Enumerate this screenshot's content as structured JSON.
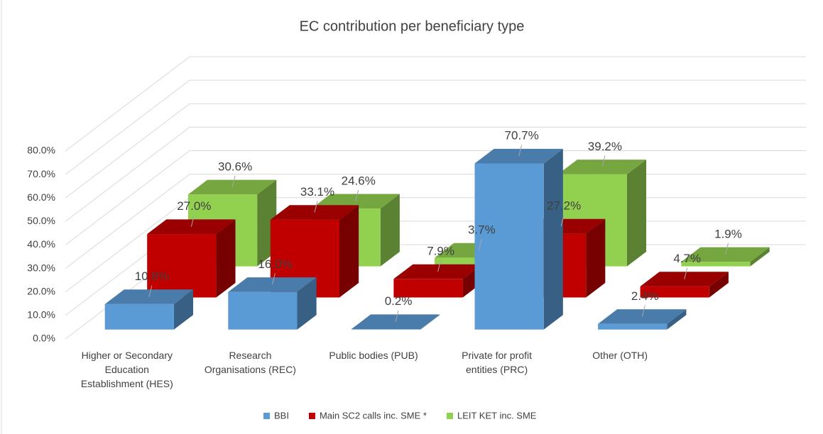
{
  "chart_data": {
    "type": "bar3d",
    "title": "EC contribution per beneficiary type",
    "categories": [
      "Higher or Secondary Education Establishment (HES)",
      "Research Organisations (REC)",
      "Public bodies (PUB)",
      "Private for profit entities (PRC)",
      "Other (OTH)"
    ],
    "series": [
      {
        "name": "BBI",
        "color": "#5b9bd5",
        "values": [
          10.8,
          16.0,
          0.2,
          70.7,
          2.4
        ],
        "value_labels": [
          "10.8%",
          "16.0%",
          "0.2%",
          "70.7%",
          "2.4%"
        ]
      },
      {
        "name": "Main SC2 calls inc. SME *",
        "color": "#c00000",
        "values": [
          27.0,
          33.1,
          7.9,
          27.2,
          4.7
        ],
        "value_labels": [
          "27.0%",
          "33.1%",
          "7.9%",
          "27.2%",
          "4.7%"
        ]
      },
      {
        "name": "LEIT KET inc. SME",
        "color": "#92d050",
        "values": [
          30.6,
          24.6,
          3.7,
          39.2,
          1.9
        ],
        "value_labels": [
          "30.6%",
          "24.6%",
          "3.7%",
          "39.2%",
          "1.9%"
        ]
      }
    ],
    "ylim": [
      0,
      80
    ],
    "yticks": [
      {
        "value": 0,
        "label": "0.0%"
      },
      {
        "value": 10,
        "label": "10.0%"
      },
      {
        "value": 20,
        "label": "20.0%"
      },
      {
        "value": 30,
        "label": "30.0%"
      },
      {
        "value": 40,
        "label": "40.0%"
      },
      {
        "value": 50,
        "label": "50.0%"
      },
      {
        "value": 60,
        "label": "60.0%"
      },
      {
        "value": 70,
        "label": "70.0%"
      },
      {
        "value": 80,
        "label": "80.0%"
      }
    ],
    "grid": true,
    "legend": "bottom"
  }
}
